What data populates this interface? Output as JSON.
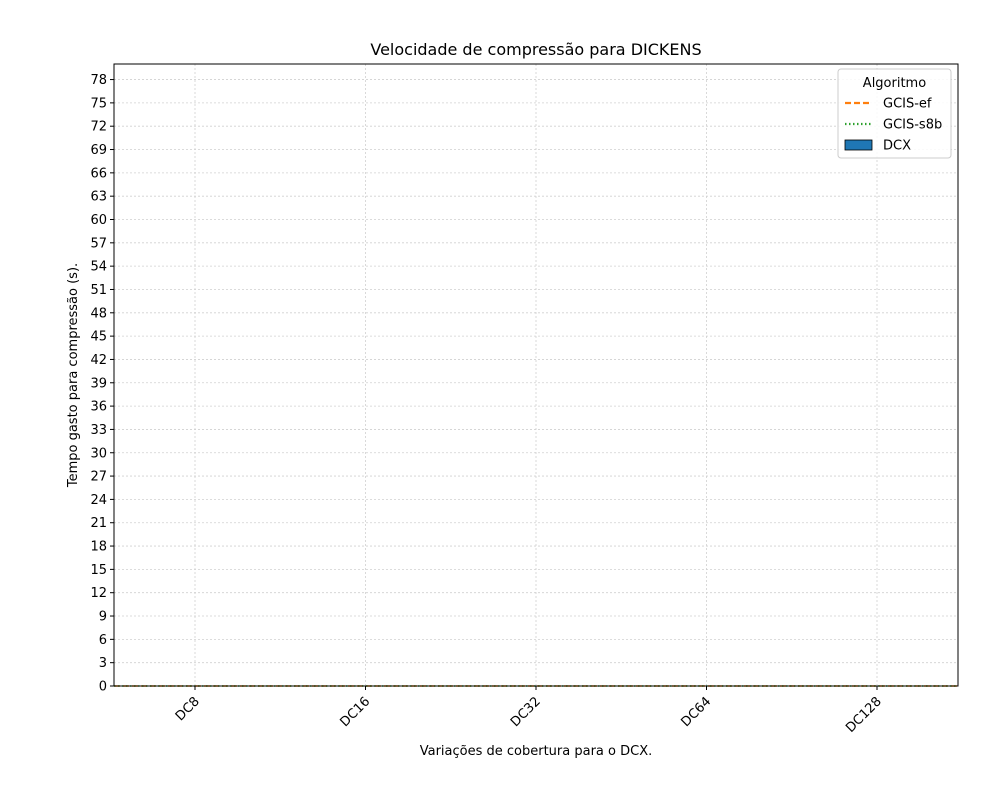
{
  "chart_data": {
    "type": "bar",
    "title": "Velocidade de compressão para  DICKENS",
    "xlabel": "Variações de cobertura para o DCX.",
    "ylabel": "Tempo gasto para compressão (s).",
    "categories": [
      "DC8",
      "DC16",
      "DC32",
      "DC64",
      "DC128"
    ],
    "ylim": [
      0,
      80
    ],
    "yticks": [
      0,
      3,
      6,
      9,
      12,
      15,
      18,
      21,
      24,
      27,
      30,
      33,
      36,
      39,
      42,
      45,
      48,
      51,
      54,
      57,
      60,
      63,
      66,
      69,
      72,
      75,
      78
    ],
    "grid": true,
    "legend": {
      "title": "Algoritmo",
      "placement": "top-right"
    },
    "series": [
      {
        "name": "GCIS-ef",
        "kind": "line",
        "style": "dashed",
        "color": "#ff7f0e",
        "values": [
          0,
          0,
          0,
          0,
          0
        ]
      },
      {
        "name": "GCIS-s8b",
        "kind": "line",
        "style": "dotted",
        "color": "#2ca02c",
        "values": [
          0,
          0,
          0,
          0,
          0
        ]
      },
      {
        "name": "DCX",
        "kind": "bar",
        "color": "#1f77b4",
        "values": [
          0,
          0,
          0,
          0,
          0
        ]
      }
    ]
  }
}
